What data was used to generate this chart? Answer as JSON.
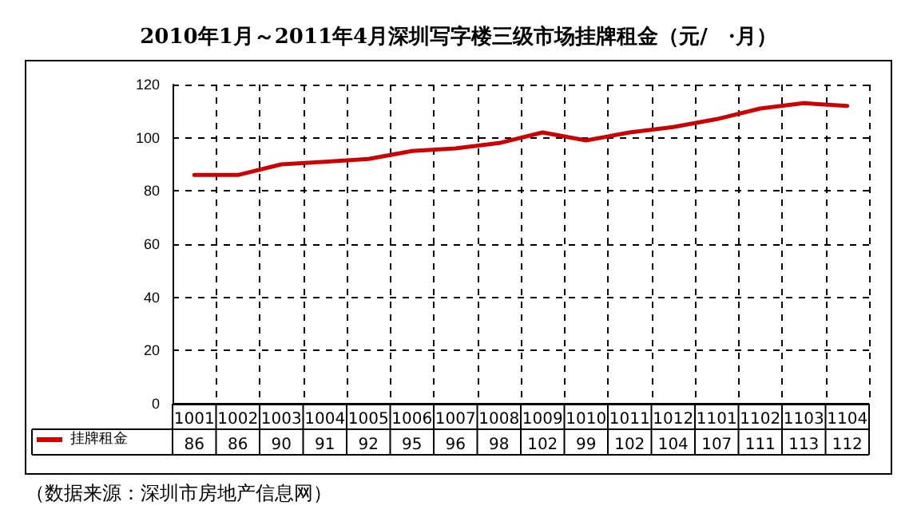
{
  "chart_data": {
    "type": "line",
    "title": "2010年1月～2011年4月深圳写字楼三级市场挂牌租金（元/　·月）",
    "categories": [
      "1001",
      "1002",
      "1003",
      "1004",
      "1005",
      "1006",
      "1007",
      "1008",
      "1009",
      "1010",
      "1011",
      "1012",
      "1101",
      "1102",
      "1103",
      "1104"
    ],
    "series": [
      {
        "name": "挂牌租金",
        "color": "#cc0000",
        "values": [
          86,
          86,
          90,
          91,
          92,
          95,
          96,
          98,
          102,
          99,
          102,
          104,
          107,
          111,
          113,
          112
        ]
      }
    ],
    "ylim": [
      0,
      120
    ],
    "yticks": [
      0,
      20,
      40,
      60,
      80,
      100,
      120
    ],
    "grid": true,
    "legend": "bottom left",
    "data_labels": true,
    "marker": "none",
    "line_style": "solid",
    "annotations": [
      "（数据来源：深圳市房地产信息网）"
    ]
  }
}
